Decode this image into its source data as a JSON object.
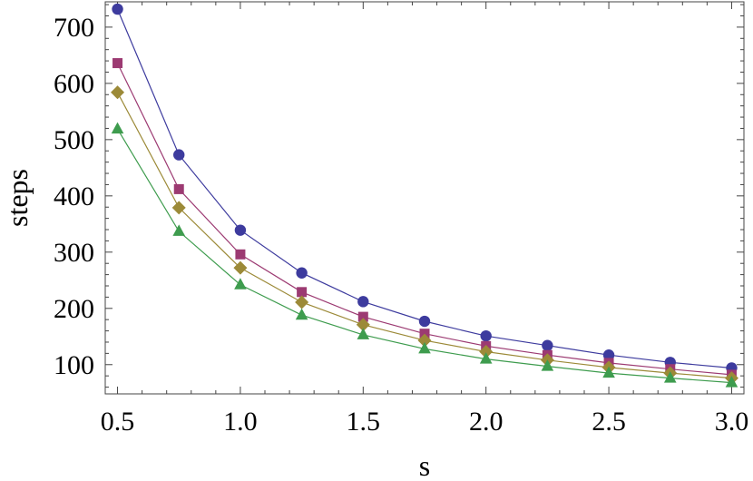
{
  "chart_data": {
    "type": "line",
    "xlabel": "s",
    "ylabel": "steps",
    "xlim": [
      0.45,
      3.05
    ],
    "ylim": [
      48,
      745
    ],
    "x_ticks": [
      0.5,
      1.0,
      1.5,
      2.0,
      2.5,
      3.0
    ],
    "x_tick_labels": [
      "0.5",
      "1.0",
      "1.5",
      "2.0",
      "2.5",
      "3.0"
    ],
    "y_ticks": [
      100,
      200,
      300,
      400,
      500,
      600,
      700
    ],
    "y_tick_labels": [
      "100",
      "200",
      "300",
      "400",
      "500",
      "600",
      "700"
    ],
    "x": [
      0.5,
      0.75,
      1.0,
      1.25,
      1.5,
      1.75,
      2.0,
      2.25,
      2.5,
      2.75,
      3.0
    ],
    "series": [
      {
        "marker": "circle",
        "color": "#3d3b9e",
        "values": [
          732,
          473,
          339,
          263,
          212,
          177,
          151,
          134,
          117,
          104,
          94
        ]
      },
      {
        "marker": "square",
        "color": "#9c3a72",
        "values": [
          636,
          412,
          296,
          229,
          185,
          155,
          133,
          117,
          103,
          92,
          82
        ]
      },
      {
        "marker": "diamond",
        "color": "#9c8a38",
        "values": [
          584,
          379,
          272,
          211,
          171,
          143,
          123,
          108,
          95,
          85,
          76
        ]
      },
      {
        "marker": "triangle",
        "color": "#3e9c4e",
        "values": [
          519,
          337,
          242,
          188,
          153,
          128,
          110,
          97,
          85,
          76,
          68
        ]
      }
    ],
    "grid": false,
    "legend": "none"
  }
}
